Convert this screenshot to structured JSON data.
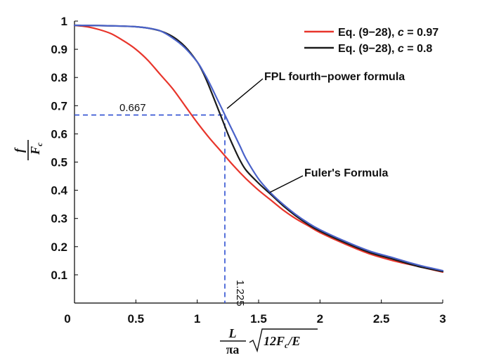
{
  "chart_data": {
    "type": "line",
    "xlim": [
      0,
      3
    ],
    "ylim": [
      0,
      1
    ],
    "x_ticks": [
      "0",
      "0.5",
      "1",
      "1.5",
      "2",
      "2.5",
      "3"
    ],
    "y_ticks": [
      "0.1",
      "0.2",
      "0.3",
      "0.4",
      "0.5",
      "0.6",
      "0.7",
      "0.8",
      "0.9",
      "1"
    ],
    "xlabel": {
      "numerator": "L",
      "denominator_a": "πa",
      "radicand_a": "12F",
      "radicand_sub": "c",
      "radicand_b": "/E"
    },
    "ylabel": {
      "numerator": "f",
      "denominator": "F",
      "denominator_sub": "c"
    },
    "legend": {
      "placement": "top-right",
      "entries": [
        {
          "prefix": "Eq. (9−28), ",
          "var": "c",
          "suffix": " = 0.97",
          "color": "#e8352b"
        },
        {
          "prefix": "Eq. (9−28), ",
          "var": "c",
          "suffix": " = 0.8",
          "color": "#1a1a1a"
        }
      ]
    },
    "annotations": [
      {
        "text": "FPL fourth−power formula",
        "points_to": [
          1.22,
          0.69
        ]
      },
      {
        "text": "Fuler's Formula",
        "points_to": [
          1.58,
          0.39
        ]
      }
    ],
    "reference": {
      "x": 1.225,
      "y": 0.667,
      "x_label": "1.225",
      "y_label": "0.667",
      "color": "#2e4fd1"
    },
    "series": [
      {
        "name": "Eq. (9−28), c = 0.97",
        "color": "#e8352b",
        "x": [
          0,
          0.1,
          0.2,
          0.3,
          0.4,
          0.5,
          0.6,
          0.7,
          0.8,
          0.9,
          1.0,
          1.1,
          1.2,
          1.3,
          1.4,
          1.5,
          1.6,
          1.7,
          1.8,
          1.9,
          2.0,
          2.2,
          2.4,
          2.6,
          2.8,
          3.0
        ],
        "y": [
          0.985,
          0.98,
          0.97,
          0.955,
          0.93,
          0.9,
          0.86,
          0.81,
          0.76,
          0.7,
          0.64,
          0.585,
          0.535,
          0.485,
          0.44,
          0.4,
          0.365,
          0.33,
          0.3,
          0.275,
          0.25,
          0.21,
          0.175,
          0.15,
          0.13,
          0.11
        ]
      },
      {
        "name": "Eq. (9−28), c = 0.8",
        "color": "#1a1a1a",
        "x": [
          0,
          0.2,
          0.4,
          0.5,
          0.6,
          0.7,
          0.8,
          0.9,
          1.0,
          1.05,
          1.1,
          1.15,
          1.2,
          1.25,
          1.3,
          1.35,
          1.4,
          1.5,
          1.6,
          1.7,
          1.8,
          1.9,
          2.0,
          2.2,
          2.4,
          2.6,
          2.8,
          3.0
        ],
        "y": [
          0.985,
          0.984,
          0.982,
          0.98,
          0.975,
          0.965,
          0.945,
          0.91,
          0.855,
          0.815,
          0.765,
          0.71,
          0.655,
          0.6,
          0.55,
          0.505,
          0.47,
          0.425,
          0.385,
          0.345,
          0.31,
          0.28,
          0.255,
          0.215,
          0.18,
          0.155,
          0.13,
          0.112
        ]
      },
      {
        "name": "FPL fourth−power formula / Fuler's Formula",
        "color": "#4a62c9",
        "x": [
          0,
          0.2,
          0.4,
          0.5,
          0.6,
          0.7,
          0.8,
          0.9,
          1.0,
          1.05,
          1.1,
          1.15,
          1.2,
          1.25,
          1.3,
          1.35,
          1.4,
          1.5,
          1.6,
          1.7,
          1.8,
          1.9,
          2.0,
          2.2,
          2.4,
          2.6,
          2.8,
          3.0
        ],
        "y": [
          0.985,
          0.984,
          0.982,
          0.98,
          0.975,
          0.965,
          0.94,
          0.905,
          0.855,
          0.82,
          0.78,
          0.735,
          0.69,
          0.645,
          0.6,
          0.555,
          0.51,
          0.44,
          0.39,
          0.35,
          0.315,
          0.285,
          0.26,
          0.22,
          0.185,
          0.16,
          0.135,
          0.115
        ]
      }
    ]
  }
}
